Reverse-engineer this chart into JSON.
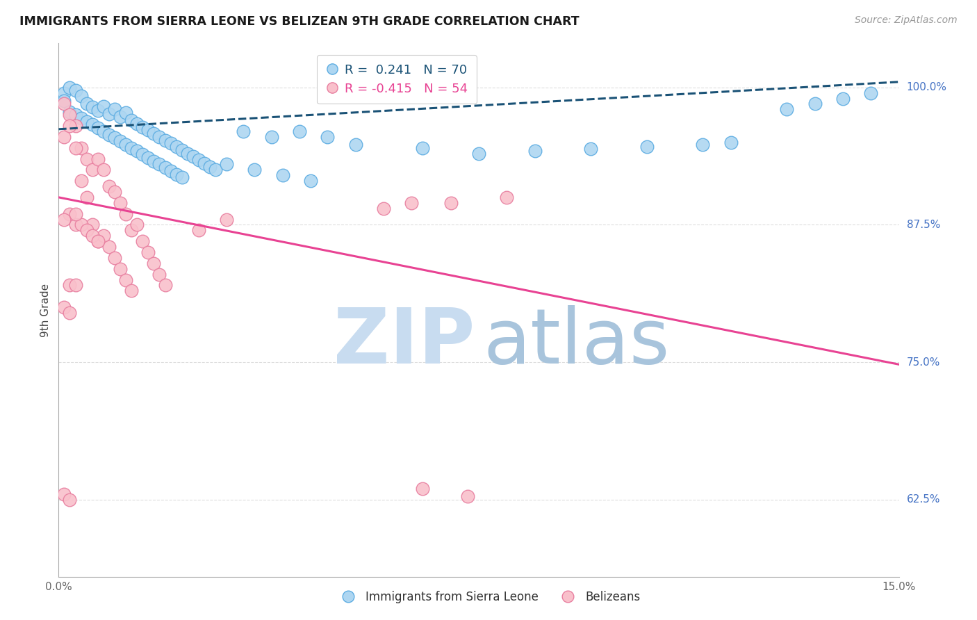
{
  "title": "IMMIGRANTS FROM SIERRA LEONE VS BELIZEAN 9TH GRADE CORRELATION CHART",
  "source": "Source: ZipAtlas.com",
  "ylabel": "9th Grade",
  "xmin": 0.0,
  "xmax": 0.15,
  "ymin": 0.555,
  "ymax": 1.04,
  "ytick_vals": [
    0.625,
    0.75,
    0.875,
    1.0
  ],
  "ytick_labels": [
    "62.5%",
    "75.0%",
    "87.5%",
    "100.0%"
  ],
  "xtick_vals": [
    0.0,
    0.025,
    0.05,
    0.075,
    0.1,
    0.125,
    0.15
  ],
  "xtick_labels": [
    "0.0%",
    "",
    "",
    "",
    "",
    "",
    "15.0%"
  ],
  "R_blue": 0.241,
  "N_blue": 70,
  "R_pink": -0.415,
  "N_pink": 54,
  "blue_color": "#AED6F1",
  "blue_edge_color": "#5DADE2",
  "pink_color": "#F9C0CB",
  "pink_edge_color": "#E87FA0",
  "blue_line_color": "#1A5276",
  "blue_line_dash": true,
  "pink_line_color": "#E84393",
  "pink_line_solid": true,
  "blue_trend_x": [
    0.0,
    0.15
  ],
  "blue_trend_y": [
    0.962,
    1.005
  ],
  "pink_trend_x": [
    0.0,
    0.15
  ],
  "pink_trend_y": [
    0.9,
    0.748
  ],
  "scatter_blue": [
    [
      0.001,
      0.995
    ],
    [
      0.002,
      1.0
    ],
    [
      0.003,
      0.997
    ],
    [
      0.001,
      0.988
    ],
    [
      0.004,
      0.992
    ],
    [
      0.005,
      0.985
    ],
    [
      0.002,
      0.978
    ],
    [
      0.006,
      0.982
    ],
    [
      0.003,
      0.975
    ],
    [
      0.007,
      0.979
    ],
    [
      0.008,
      0.983
    ],
    [
      0.004,
      0.972
    ],
    [
      0.009,
      0.976
    ],
    [
      0.01,
      0.98
    ],
    [
      0.005,
      0.969
    ],
    [
      0.011,
      0.973
    ],
    [
      0.012,
      0.977
    ],
    [
      0.006,
      0.966
    ],
    [
      0.013,
      0.97
    ],
    [
      0.007,
      0.963
    ],
    [
      0.014,
      0.967
    ],
    [
      0.008,
      0.96
    ],
    [
      0.015,
      0.964
    ],
    [
      0.009,
      0.957
    ],
    [
      0.016,
      0.961
    ],
    [
      0.01,
      0.954
    ],
    [
      0.017,
      0.958
    ],
    [
      0.011,
      0.951
    ],
    [
      0.018,
      0.955
    ],
    [
      0.012,
      0.948
    ],
    [
      0.019,
      0.952
    ],
    [
      0.013,
      0.945
    ],
    [
      0.02,
      0.949
    ],
    [
      0.014,
      0.942
    ],
    [
      0.021,
      0.946
    ],
    [
      0.015,
      0.939
    ],
    [
      0.022,
      0.943
    ],
    [
      0.016,
      0.936
    ],
    [
      0.023,
      0.94
    ],
    [
      0.017,
      0.933
    ],
    [
      0.024,
      0.937
    ],
    [
      0.018,
      0.93
    ],
    [
      0.025,
      0.934
    ],
    [
      0.019,
      0.927
    ],
    [
      0.026,
      0.931
    ],
    [
      0.02,
      0.924
    ],
    [
      0.027,
      0.928
    ],
    [
      0.021,
      0.921
    ],
    [
      0.028,
      0.925
    ],
    [
      0.022,
      0.918
    ],
    [
      0.033,
      0.96
    ],
    [
      0.038,
      0.955
    ],
    [
      0.043,
      0.96
    ],
    [
      0.048,
      0.955
    ],
    [
      0.053,
      0.948
    ],
    [
      0.065,
      0.945
    ],
    [
      0.075,
      0.94
    ],
    [
      0.085,
      0.942
    ],
    [
      0.095,
      0.944
    ],
    [
      0.105,
      0.946
    ],
    [
      0.115,
      0.948
    ],
    [
      0.12,
      0.95
    ],
    [
      0.13,
      0.98
    ],
    [
      0.135,
      0.985
    ],
    [
      0.14,
      0.99
    ],
    [
      0.145,
      0.995
    ],
    [
      0.03,
      0.93
    ],
    [
      0.035,
      0.925
    ],
    [
      0.04,
      0.92
    ],
    [
      0.045,
      0.915
    ]
  ],
  "scatter_pink": [
    [
      0.001,
      0.985
    ],
    [
      0.002,
      0.975
    ],
    [
      0.003,
      0.965
    ],
    [
      0.001,
      0.955
    ],
    [
      0.004,
      0.945
    ],
    [
      0.005,
      0.935
    ],
    [
      0.002,
      0.965
    ],
    [
      0.006,
      0.925
    ],
    [
      0.003,
      0.945
    ],
    [
      0.007,
      0.935
    ],
    [
      0.008,
      0.925
    ],
    [
      0.004,
      0.915
    ],
    [
      0.009,
      0.91
    ],
    [
      0.01,
      0.905
    ],
    [
      0.005,
      0.9
    ],
    [
      0.011,
      0.895
    ],
    [
      0.012,
      0.885
    ],
    [
      0.006,
      0.875
    ],
    [
      0.013,
      0.87
    ],
    [
      0.007,
      0.86
    ],
    [
      0.014,
      0.875
    ],
    [
      0.008,
      0.865
    ],
    [
      0.015,
      0.86
    ],
    [
      0.009,
      0.855
    ],
    [
      0.016,
      0.85
    ],
    [
      0.01,
      0.845
    ],
    [
      0.017,
      0.84
    ],
    [
      0.011,
      0.835
    ],
    [
      0.018,
      0.83
    ],
    [
      0.012,
      0.825
    ],
    [
      0.019,
      0.82
    ],
    [
      0.013,
      0.815
    ],
    [
      0.003,
      0.875
    ],
    [
      0.004,
      0.875
    ],
    [
      0.005,
      0.87
    ],
    [
      0.006,
      0.865
    ],
    [
      0.007,
      0.86
    ],
    [
      0.002,
      0.885
    ],
    [
      0.003,
      0.885
    ],
    [
      0.025,
      0.87
    ],
    [
      0.002,
      0.82
    ],
    [
      0.003,
      0.82
    ],
    [
      0.001,
      0.8
    ],
    [
      0.002,
      0.795
    ],
    [
      0.001,
      0.88
    ],
    [
      0.03,
      0.88
    ],
    [
      0.07,
      0.895
    ],
    [
      0.08,
      0.9
    ],
    [
      0.065,
      0.635
    ],
    [
      0.073,
      0.628
    ],
    [
      0.001,
      0.63
    ],
    [
      0.002,
      0.625
    ],
    [
      0.063,
      0.895
    ],
    [
      0.058,
      0.89
    ]
  ],
  "watermark_zip_color": "#C8DCF0",
  "watermark_atlas_color": "#A8C4DC",
  "legend_box_color": "#FFFFFF",
  "legend_edge_color": "#CCCCCC",
  "grid_color": "#DDDDDD",
  "tick_color": "#666666",
  "right_label_color": "#4472C4",
  "source_color": "#999999"
}
